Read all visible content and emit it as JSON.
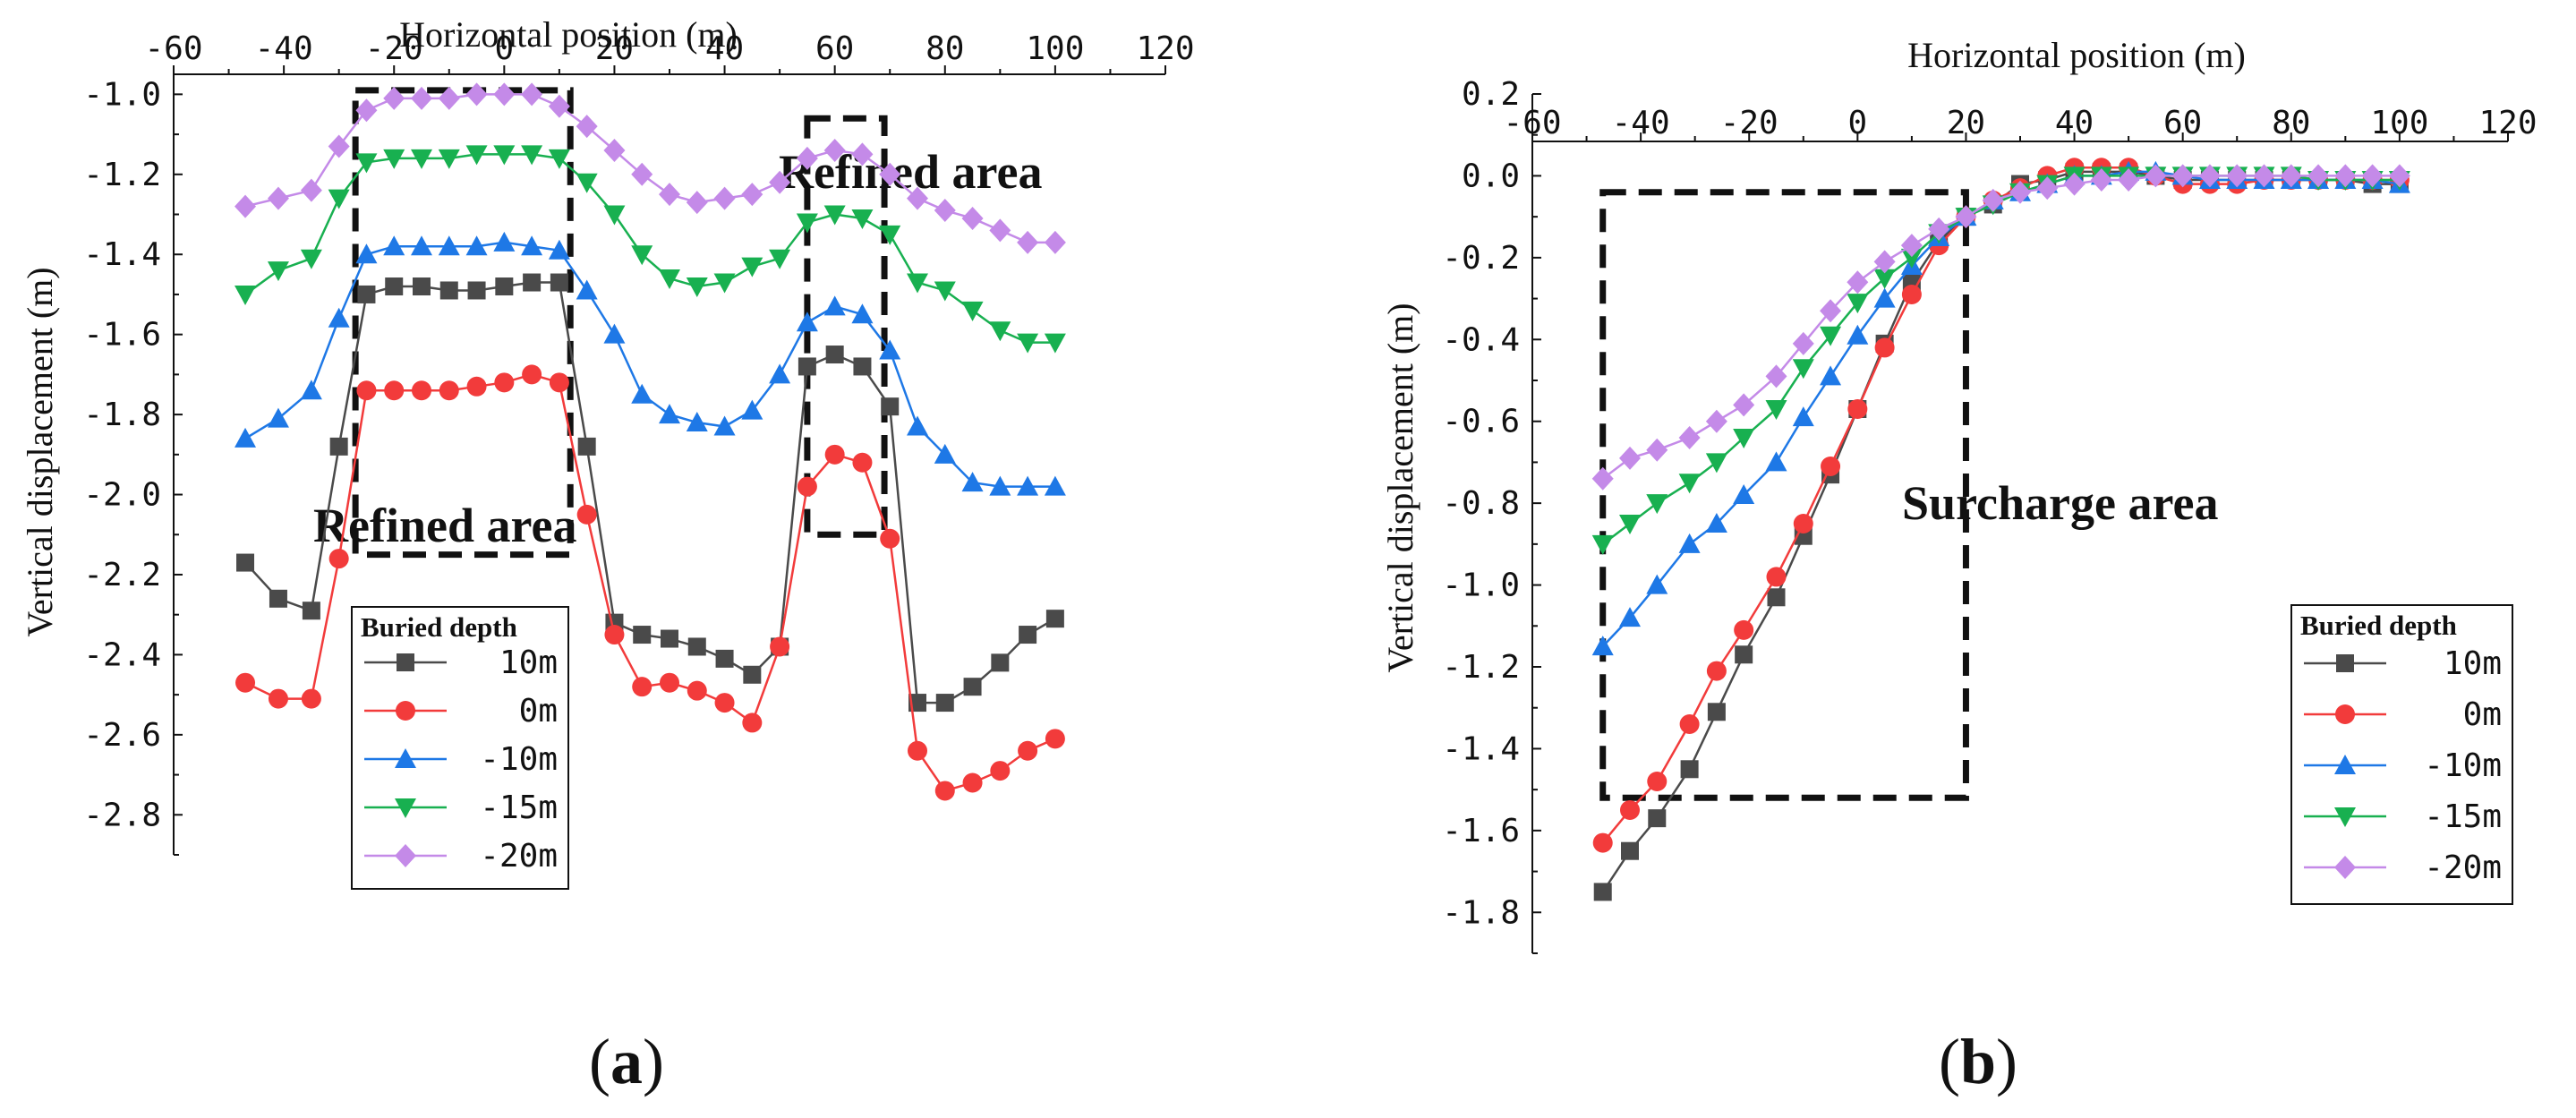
{
  "colors": {
    "10m": "#4a4a4a",
    "0m": "#f23b3b",
    "-10m": "#1e78e6",
    "-15m": "#18b050",
    "-20m": "#c48ae8"
  },
  "panels": [
    {
      "open": "(",
      "letter": "a",
      "close": ")"
    },
    {
      "open": "(",
      "letter": "b",
      "close": ")"
    }
  ],
  "chart_data": [
    {
      "type": "line",
      "xlabel": "Horizontal position (m)",
      "ylabel": "Vertical displacement (m)",
      "xlim": [
        -60,
        120
      ],
      "ylim": [
        -2.9,
        -0.95
      ],
      "xticks": [
        "-60",
        "-40",
        "-20",
        "0",
        "20",
        "40",
        "60",
        "80",
        "100",
        "120"
      ],
      "yticks": [
        "-1.0",
        "-1.2",
        "-1.4",
        "-1.6",
        "-1.8",
        "-2.0",
        "-2.2",
        "-2.4",
        "-2.6",
        "-2.8"
      ],
      "legend_title": "Buried depth",
      "annotations": [
        "Refined area",
        "Refined area"
      ],
      "regions": [
        {
          "x": [
            -27,
            12
          ],
          "y": [
            -0.99,
            -2.15
          ]
        },
        {
          "x": [
            55,
            69
          ],
          "y": [
            -1.06,
            -2.1
          ]
        }
      ],
      "series": [
        {
          "name": "10m",
          "marker": "square",
          "x": [
            -47,
            -41,
            -35,
            -30,
            -25,
            -20,
            -15,
            -10,
            -5,
            0,
            5,
            10,
            15,
            20,
            25,
            30,
            35,
            40,
            45,
            50,
            55,
            60,
            65,
            70,
            75,
            80,
            85,
            90,
            95,
            100
          ],
          "y": [
            -2.17,
            -2.26,
            -2.29,
            -1.88,
            -1.5,
            -1.48,
            -1.48,
            -1.49,
            -1.49,
            -1.48,
            -1.47,
            -1.47,
            -1.88,
            -2.32,
            -2.35,
            -2.36,
            -2.38,
            -2.41,
            -2.45,
            -2.38,
            -1.68,
            -1.65,
            -1.68,
            -1.78,
            -2.52,
            -2.52,
            -2.48,
            -2.42,
            -2.35,
            -2.31
          ]
        },
        {
          "name": "0m",
          "marker": "circle",
          "x": [
            -47,
            -41,
            -35,
            -30,
            -25,
            -20,
            -15,
            -10,
            -5,
            0,
            5,
            10,
            15,
            20,
            25,
            30,
            35,
            40,
            45,
            50,
            55,
            60,
            65,
            70,
            75,
            80,
            85,
            90,
            95,
            100
          ],
          "y": [
            -2.47,
            -2.51,
            -2.51,
            -2.16,
            -1.74,
            -1.74,
            -1.74,
            -1.74,
            -1.73,
            -1.72,
            -1.7,
            -1.72,
            -2.05,
            -2.35,
            -2.48,
            -2.47,
            -2.49,
            -2.52,
            -2.57,
            -2.38,
            -1.98,
            -1.9,
            -1.92,
            -2.11,
            -2.64,
            -2.74,
            -2.72,
            -2.69,
            -2.64,
            -2.61
          ]
        },
        {
          "name": "-10m",
          "marker": "triangle-up",
          "x": [
            -47,
            -41,
            -35,
            -30,
            -25,
            -20,
            -15,
            -10,
            -5,
            0,
            5,
            10,
            15,
            20,
            25,
            30,
            35,
            40,
            45,
            50,
            55,
            60,
            65,
            70,
            75,
            80,
            85,
            90,
            95,
            100
          ],
          "y": [
            -1.86,
            -1.81,
            -1.74,
            -1.56,
            -1.4,
            -1.38,
            -1.38,
            -1.38,
            -1.38,
            -1.37,
            -1.38,
            -1.39,
            -1.49,
            -1.6,
            -1.75,
            -1.8,
            -1.82,
            -1.83,
            -1.79,
            -1.7,
            -1.57,
            -1.53,
            -1.55,
            -1.64,
            -1.83,
            -1.9,
            -1.97,
            -1.98,
            -1.98,
            -1.98
          ]
        },
        {
          "name": "-15m",
          "marker": "triangle-down",
          "x": [
            -47,
            -41,
            -35,
            -30,
            -25,
            -20,
            -15,
            -10,
            -5,
            0,
            5,
            10,
            15,
            20,
            25,
            30,
            35,
            40,
            45,
            50,
            55,
            60,
            65,
            70,
            75,
            80,
            85,
            90,
            95,
            100
          ],
          "y": [
            -1.5,
            -1.44,
            -1.41,
            -1.26,
            -1.17,
            -1.16,
            -1.16,
            -1.16,
            -1.15,
            -1.15,
            -1.15,
            -1.16,
            -1.22,
            -1.3,
            -1.4,
            -1.46,
            -1.48,
            -1.47,
            -1.43,
            -1.41,
            -1.32,
            -1.3,
            -1.31,
            -1.35,
            -1.47,
            -1.49,
            -1.54,
            -1.59,
            -1.62,
            -1.62
          ]
        },
        {
          "name": "-20m",
          "marker": "diamond",
          "x": [
            -47,
            -41,
            -35,
            -30,
            -25,
            -20,
            -15,
            -10,
            -5,
            0,
            5,
            10,
            15,
            20,
            25,
            30,
            35,
            40,
            45,
            50,
            55,
            60,
            65,
            70,
            75,
            80,
            85,
            90,
            95,
            100
          ],
          "y": [
            -1.28,
            -1.26,
            -1.24,
            -1.13,
            -1.04,
            -1.01,
            -1.01,
            -1.01,
            -1.0,
            -1.0,
            -1.0,
            -1.03,
            -1.08,
            -1.14,
            -1.2,
            -1.25,
            -1.27,
            -1.26,
            -1.25,
            -1.22,
            -1.16,
            -1.14,
            -1.15,
            -1.2,
            -1.26,
            -1.29,
            -1.31,
            -1.34,
            -1.37,
            -1.37
          ]
        }
      ]
    },
    {
      "type": "line",
      "xlabel": "Horizontal position (m)",
      "ylabel": "Vertical displacement (m)",
      "xlim": [
        -60,
        120
      ],
      "ylim": [
        -1.9,
        0.2
      ],
      "xticks": [
        "-60",
        "-40",
        "-20",
        "0",
        "20",
        "40",
        "60",
        "80",
        "100",
        "120"
      ],
      "yticks": [
        "0.2",
        "0.0",
        "-0.2",
        "-0.4",
        "-0.6",
        "-0.8",
        "-1.0",
        "-1.2",
        "-1.4",
        "-1.6",
        "-1.8"
      ],
      "legend_title": "Buried depth",
      "annotations": [
        "Surcharge area"
      ],
      "regions": [
        {
          "x": [
            -47,
            20
          ],
          "y": [
            -0.04,
            -1.52
          ]
        }
      ],
      "series": [
        {
          "name": "10m",
          "marker": "square",
          "x": [
            -47,
            -42,
            -37,
            -31,
            -26,
            -21,
            -15,
            -10,
            -5,
            0,
            5,
            10,
            15,
            20,
            25,
            30,
            35,
            40,
            45,
            50,
            55,
            60,
            65,
            70,
            75,
            80,
            85,
            90,
            95,
            100
          ],
          "y": [
            -1.75,
            -1.65,
            -1.57,
            -1.45,
            -1.31,
            -1.17,
            -1.03,
            -0.88,
            -0.73,
            -0.57,
            -0.41,
            -0.26,
            -0.16,
            -0.1,
            -0.07,
            -0.02,
            -0.01,
            0.01,
            0.01,
            0.01,
            0.0,
            -0.01,
            -0.01,
            -0.01,
            -0.01,
            -0.01,
            -0.01,
            -0.01,
            -0.02,
            -0.02
          ]
        },
        {
          "name": "0m",
          "marker": "circle",
          "x": [
            -47,
            -42,
            -37,
            -31,
            -26,
            -21,
            -15,
            -10,
            -5,
            0,
            5,
            10,
            15,
            20,
            25,
            30,
            35,
            40,
            45,
            50,
            55,
            60,
            65,
            70,
            75,
            80,
            85,
            90,
            95,
            100
          ],
          "y": [
            -1.63,
            -1.55,
            -1.48,
            -1.34,
            -1.21,
            -1.11,
            -0.98,
            -0.85,
            -0.71,
            -0.57,
            -0.42,
            -0.29,
            -0.17,
            -0.1,
            -0.06,
            -0.03,
            0.0,
            0.02,
            0.02,
            0.02,
            0.0,
            -0.02,
            -0.02,
            -0.02,
            -0.01,
            -0.01,
            -0.01,
            -0.01,
            -0.01,
            -0.01
          ]
        },
        {
          "name": "-10m",
          "marker": "triangle-up",
          "x": [
            -47,
            -42,
            -37,
            -31,
            -26,
            -21,
            -15,
            -10,
            -5,
            0,
            5,
            10,
            15,
            20,
            25,
            30,
            35,
            40,
            45,
            50,
            55,
            60,
            65,
            70,
            75,
            80,
            85,
            90,
            95,
            100
          ],
          "y": [
            -1.15,
            -1.08,
            -1.0,
            -0.9,
            -0.85,
            -0.78,
            -0.7,
            -0.59,
            -0.49,
            -0.39,
            -0.3,
            -0.22,
            -0.15,
            -0.1,
            -0.06,
            -0.04,
            -0.02,
            0.0,
            0.0,
            0.01,
            0.01,
            0.0,
            -0.01,
            -0.01,
            -0.01,
            -0.01,
            -0.01,
            -0.01,
            -0.01,
            -0.02
          ]
        },
        {
          "name": "-15m",
          "marker": "triangle-down",
          "x": [
            -47,
            -42,
            -37,
            -31,
            -26,
            -21,
            -15,
            -10,
            -5,
            0,
            5,
            10,
            15,
            20,
            25,
            30,
            35,
            40,
            45,
            50,
            55,
            60,
            65,
            70,
            75,
            80,
            85,
            90,
            95,
            100
          ],
          "y": [
            -0.9,
            -0.85,
            -0.8,
            -0.75,
            -0.7,
            -0.64,
            -0.57,
            -0.47,
            -0.39,
            -0.31,
            -0.25,
            -0.2,
            -0.14,
            -0.1,
            -0.07,
            -0.04,
            -0.02,
            0.0,
            0.0,
            0.0,
            0.0,
            0.0,
            0.0,
            0.0,
            0.0,
            0.0,
            -0.01,
            -0.01,
            -0.01,
            -0.01
          ]
        },
        {
          "name": "-20m",
          "marker": "diamond",
          "x": [
            -47,
            -42,
            -37,
            -31,
            -26,
            -21,
            -15,
            -10,
            -5,
            0,
            5,
            10,
            15,
            20,
            25,
            30,
            35,
            40,
            45,
            50,
            55,
            60,
            65,
            70,
            75,
            80,
            85,
            90,
            95,
            100
          ],
          "y": [
            -0.74,
            -0.69,
            -0.67,
            -0.64,
            -0.6,
            -0.56,
            -0.49,
            -0.41,
            -0.33,
            -0.26,
            -0.21,
            -0.17,
            -0.13,
            -0.1,
            -0.06,
            -0.04,
            -0.03,
            -0.02,
            -0.01,
            -0.01,
            0.0,
            0.0,
            0.0,
            0.0,
            0.0,
            0.0,
            0.0,
            0.0,
            0.0,
            0.0
          ]
        }
      ]
    }
  ]
}
